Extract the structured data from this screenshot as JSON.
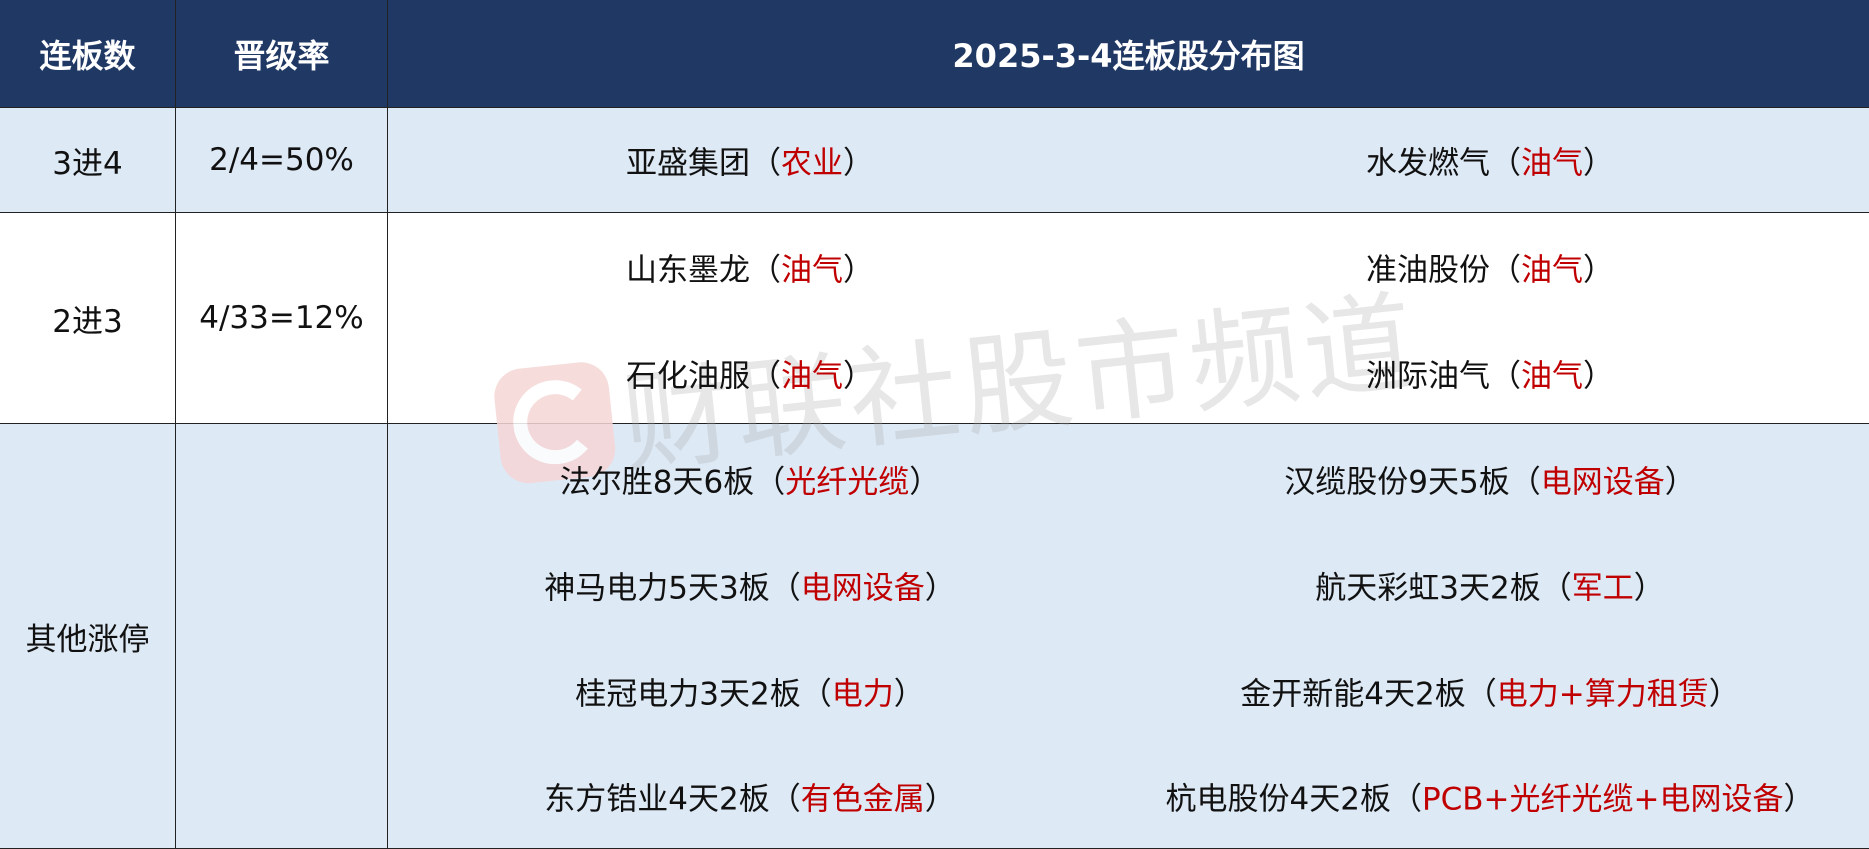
{
  "header": {
    "col1": "连板数",
    "col2": "晋级率",
    "col3": "2025-3-4连板股分布图"
  },
  "rows": [
    {
      "level": "3进4",
      "rate": "2/4=50%",
      "stocks": [
        {
          "name": "亚盛集团",
          "sector": "农业"
        },
        {
          "name": "水发燃气",
          "sector": "油气"
        }
      ]
    },
    {
      "level": "2进3",
      "rate": "4/33=12%",
      "stocks": [
        {
          "name": "山东墨龙",
          "sector": "油气"
        },
        {
          "name": "准油股份",
          "sector": "油气"
        },
        {
          "name": "石化油服",
          "sector": "油气"
        },
        {
          "name": "洲际油气",
          "sector": "油气"
        }
      ]
    },
    {
      "level": "其他涨停",
      "rate": "",
      "stocks": [
        {
          "name": "法尔胜8天6板",
          "sector": "光纤光缆"
        },
        {
          "name": "汉缆股份9天5板",
          "sector": "电网设备"
        },
        {
          "name": "神马电力5天3板",
          "sector": "电网设备"
        },
        {
          "name": "航天彩虹3天2板",
          "sector": "军工"
        },
        {
          "name": "桂冠电力3天2板",
          "sector": "电力"
        },
        {
          "name": "金开新能4天2板",
          "sector": "电力+算力租赁"
        },
        {
          "name": "东方锆业4天2板",
          "sector": "有色金属"
        },
        {
          "name": "杭电股份4天2板",
          "sector": "PCB+光纤光缆+电网设备"
        }
      ]
    }
  ],
  "brackets": {
    "open": "（",
    "close": "）"
  },
  "watermark": "财联社股市频道",
  "colors": {
    "header_bg": "#203864",
    "row_blue": "#dde9f5",
    "sector_red": "#c00000"
  }
}
